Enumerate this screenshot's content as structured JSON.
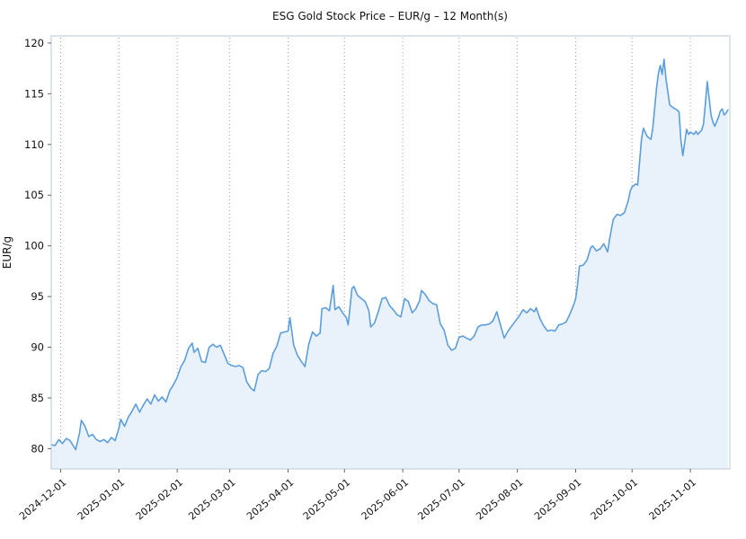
{
  "chart_data": {
    "type": "area",
    "title": "ESG Gold Stock Price – EUR/g – 12 Month(s)",
    "ylabel": "EUR/g",
    "xlabel": "",
    "series_name": "ESG Gold Stock Price (EUR/g)",
    "legend": "none",
    "grid": "vertical-dotted",
    "ylim": [
      78.0,
      120.7
    ],
    "xlim": [
      "2024-11-26",
      "2025-11-22"
    ],
    "y_ticks": [
      80,
      85,
      90,
      95,
      100,
      105,
      110,
      115,
      120
    ],
    "x_ticks": [
      "2024-12-01",
      "2025-01-01",
      "2025-02-01",
      "2025-03-01",
      "2025-04-01",
      "2025-05-01",
      "2025-06-01",
      "2025-07-01",
      "2025-08-01",
      "2025-09-01",
      "2025-10-01",
      "2025-11-01"
    ],
    "line_color": "#5b9edb",
    "fill_color": "#e9f2fb",
    "grid_color": "#9e9e9e",
    "frame_color": "#c5d3de",
    "points": [
      [
        "2024-11-26",
        80.4
      ],
      [
        "2024-11-28",
        80.3
      ],
      [
        "2024-11-30",
        80.9
      ],
      [
        "2024-12-02",
        80.5
      ],
      [
        "2024-12-04",
        81.0
      ],
      [
        "2024-12-06",
        80.8
      ],
      [
        "2024-12-08",
        80.2
      ],
      [
        "2024-12-09",
        79.9
      ],
      [
        "2024-12-11",
        81.5
      ],
      [
        "2024-12-12",
        82.8
      ],
      [
        "2024-12-14",
        82.2
      ],
      [
        "2024-12-16",
        81.2
      ],
      [
        "2024-12-18",
        81.4
      ],
      [
        "2024-12-20",
        80.9
      ],
      [
        "2024-12-22",
        80.7
      ],
      [
        "2024-12-24",
        80.9
      ],
      [
        "2024-12-26",
        80.6
      ],
      [
        "2024-12-28",
        81.1
      ],
      [
        "2024-12-30",
        80.8
      ],
      [
        "2025-01-01",
        82.0
      ],
      [
        "2025-01-02",
        82.9
      ],
      [
        "2025-01-04",
        82.2
      ],
      [
        "2025-01-06",
        83.1
      ],
      [
        "2025-01-08",
        83.7
      ],
      [
        "2025-01-10",
        84.4
      ],
      [
        "2025-01-12",
        83.6
      ],
      [
        "2025-01-14",
        84.3
      ],
      [
        "2025-01-16",
        84.9
      ],
      [
        "2025-01-18",
        84.4
      ],
      [
        "2025-01-20",
        85.3
      ],
      [
        "2025-01-22",
        84.7
      ],
      [
        "2025-01-24",
        85.1
      ],
      [
        "2025-01-26",
        84.6
      ],
      [
        "2025-01-28",
        85.7
      ],
      [
        "2025-01-30",
        86.3
      ],
      [
        "2025-02-01",
        87.0
      ],
      [
        "2025-02-03",
        88.1
      ],
      [
        "2025-02-05",
        88.7
      ],
      [
        "2025-02-07",
        89.9
      ],
      [
        "2025-02-09",
        90.4
      ],
      [
        "2025-02-10",
        89.5
      ],
      [
        "2025-02-12",
        89.9
      ],
      [
        "2025-02-14",
        88.6
      ],
      [
        "2025-02-16",
        88.5
      ],
      [
        "2025-02-18",
        90.0
      ],
      [
        "2025-02-20",
        90.3
      ],
      [
        "2025-02-22",
        90.0
      ],
      [
        "2025-02-24",
        90.2
      ],
      [
        "2025-02-26",
        89.3
      ],
      [
        "2025-02-28",
        88.4
      ],
      [
        "2025-03-02",
        88.2
      ],
      [
        "2025-03-04",
        88.1
      ],
      [
        "2025-03-06",
        88.2
      ],
      [
        "2025-03-08",
        88.0
      ],
      [
        "2025-03-10",
        86.6
      ],
      [
        "2025-03-12",
        86.0
      ],
      [
        "2025-03-14",
        85.7
      ],
      [
        "2025-03-16",
        87.3
      ],
      [
        "2025-03-18",
        87.7
      ],
      [
        "2025-03-20",
        87.6
      ],
      [
        "2025-03-22",
        87.9
      ],
      [
        "2025-03-24",
        89.4
      ],
      [
        "2025-03-26",
        90.1
      ],
      [
        "2025-03-28",
        91.4
      ],
      [
        "2025-03-30",
        91.5
      ],
      [
        "2025-04-01",
        91.6
      ],
      [
        "2025-04-02",
        92.9
      ],
      [
        "2025-04-04",
        90.2
      ],
      [
        "2025-04-06",
        89.2
      ],
      [
        "2025-04-08",
        88.6
      ],
      [
        "2025-04-10",
        88.1
      ],
      [
        "2025-04-12",
        90.3
      ],
      [
        "2025-04-14",
        91.5
      ],
      [
        "2025-04-16",
        91.1
      ],
      [
        "2025-04-18",
        91.4
      ],
      [
        "2025-04-19",
        93.8
      ],
      [
        "2025-04-21",
        93.9
      ],
      [
        "2025-04-23",
        93.6
      ],
      [
        "2025-04-25",
        96.1
      ],
      [
        "2025-04-26",
        93.7
      ],
      [
        "2025-04-28",
        94.0
      ],
      [
        "2025-04-30",
        93.4
      ],
      [
        "2025-05-02",
        92.9
      ],
      [
        "2025-05-03",
        92.2
      ],
      [
        "2025-05-05",
        95.8
      ],
      [
        "2025-05-06",
        96.0
      ],
      [
        "2025-05-08",
        95.1
      ],
      [
        "2025-05-10",
        94.8
      ],
      [
        "2025-05-12",
        94.5
      ],
      [
        "2025-05-14",
        93.6
      ],
      [
        "2025-05-15",
        92.0
      ],
      [
        "2025-05-17",
        92.4
      ],
      [
        "2025-05-19",
        93.5
      ],
      [
        "2025-05-21",
        94.8
      ],
      [
        "2025-05-23",
        94.9
      ],
      [
        "2025-05-25",
        94.1
      ],
      [
        "2025-05-27",
        93.7
      ],
      [
        "2025-05-29",
        93.2
      ],
      [
        "2025-05-31",
        93.0
      ],
      [
        "2025-06-02",
        94.8
      ],
      [
        "2025-06-04",
        94.5
      ],
      [
        "2025-06-06",
        93.4
      ],
      [
        "2025-06-08",
        93.8
      ],
      [
        "2025-06-10",
        94.6
      ],
      [
        "2025-06-11",
        95.6
      ],
      [
        "2025-06-13",
        95.2
      ],
      [
        "2025-06-15",
        94.6
      ],
      [
        "2025-06-17",
        94.3
      ],
      [
        "2025-06-19",
        94.2
      ],
      [
        "2025-06-21",
        92.3
      ],
      [
        "2025-06-23",
        91.7
      ],
      [
        "2025-06-25",
        90.2
      ],
      [
        "2025-06-27",
        89.7
      ],
      [
        "2025-06-29",
        89.9
      ],
      [
        "2025-07-01",
        91.0
      ],
      [
        "2025-07-03",
        91.1
      ],
      [
        "2025-07-05",
        90.9
      ],
      [
        "2025-07-07",
        90.7
      ],
      [
        "2025-07-09",
        91.1
      ],
      [
        "2025-07-11",
        92.0
      ],
      [
        "2025-07-13",
        92.2
      ],
      [
        "2025-07-15",
        92.2
      ],
      [
        "2025-07-17",
        92.3
      ],
      [
        "2025-07-19",
        92.6
      ],
      [
        "2025-07-21",
        93.5
      ],
      [
        "2025-07-23",
        92.2
      ],
      [
        "2025-07-25",
        90.9
      ],
      [
        "2025-07-27",
        91.6
      ],
      [
        "2025-07-29",
        92.1
      ],
      [
        "2025-07-31",
        92.6
      ],
      [
        "2025-08-02",
        93.1
      ],
      [
        "2025-08-04",
        93.7
      ],
      [
        "2025-08-06",
        93.4
      ],
      [
        "2025-08-08",
        93.8
      ],
      [
        "2025-08-10",
        93.5
      ],
      [
        "2025-08-11",
        93.9
      ],
      [
        "2025-08-13",
        92.8
      ],
      [
        "2025-08-15",
        92.1
      ],
      [
        "2025-08-17",
        91.6
      ],
      [
        "2025-08-19",
        91.7
      ],
      [
        "2025-08-21",
        91.6
      ],
      [
        "2025-08-23",
        92.2
      ],
      [
        "2025-08-25",
        92.3
      ],
      [
        "2025-08-27",
        92.5
      ],
      [
        "2025-08-29",
        93.3
      ],
      [
        "2025-08-31",
        94.2
      ],
      [
        "2025-09-01",
        94.8
      ],
      [
        "2025-09-02",
        96.2
      ],
      [
        "2025-09-03",
        98.0
      ],
      [
        "2025-09-05",
        98.1
      ],
      [
        "2025-09-07",
        98.6
      ],
      [
        "2025-09-09",
        99.8
      ],
      [
        "2025-09-10",
        100.0
      ],
      [
        "2025-09-12",
        99.5
      ],
      [
        "2025-09-14",
        99.7
      ],
      [
        "2025-09-16",
        100.2
      ],
      [
        "2025-09-18",
        99.4
      ],
      [
        "2025-09-19",
        100.6
      ],
      [
        "2025-09-21",
        102.6
      ],
      [
        "2025-09-23",
        103.1
      ],
      [
        "2025-09-25",
        103.0
      ],
      [
        "2025-09-27",
        103.3
      ],
      [
        "2025-09-29",
        104.5
      ],
      [
        "2025-09-30",
        105.4
      ],
      [
        "2025-10-01",
        105.8
      ],
      [
        "2025-10-03",
        106.1
      ],
      [
        "2025-10-04",
        106.0
      ],
      [
        "2025-10-05",
        108.3
      ],
      [
        "2025-10-06",
        110.5
      ],
      [
        "2025-10-07",
        111.6
      ],
      [
        "2025-10-09",
        110.8
      ],
      [
        "2025-10-11",
        110.5
      ],
      [
        "2025-10-12",
        111.6
      ],
      [
        "2025-10-13",
        113.5
      ],
      [
        "2025-10-14",
        115.5
      ],
      [
        "2025-10-15",
        117.0
      ],
      [
        "2025-10-16",
        117.8
      ],
      [
        "2025-10-17",
        116.9
      ],
      [
        "2025-10-18",
        118.4
      ],
      [
        "2025-10-19",
        116.5
      ],
      [
        "2025-10-21",
        113.9
      ],
      [
        "2025-10-23",
        113.6
      ],
      [
        "2025-10-25",
        113.4
      ],
      [
        "2025-10-26",
        113.2
      ],
      [
        "2025-10-27",
        110.4
      ],
      [
        "2025-10-28",
        108.9
      ],
      [
        "2025-10-30",
        111.5
      ],
      [
        "2025-10-31",
        111.0
      ],
      [
        "2025-11-01",
        111.2
      ],
      [
        "2025-11-03",
        111.0
      ],
      [
        "2025-11-04",
        111.3
      ],
      [
        "2025-11-05",
        111.0
      ],
      [
        "2025-11-07",
        111.4
      ],
      [
        "2025-11-08",
        112.0
      ],
      [
        "2025-11-09",
        114.0
      ],
      [
        "2025-11-10",
        116.2
      ],
      [
        "2025-11-12",
        112.9
      ],
      [
        "2025-11-13",
        112.2
      ],
      [
        "2025-11-14",
        111.8
      ],
      [
        "2025-11-16",
        112.7
      ],
      [
        "2025-11-17",
        113.3
      ],
      [
        "2025-11-18",
        113.5
      ],
      [
        "2025-11-19",
        112.9
      ],
      [
        "2025-11-20",
        113.1
      ],
      [
        "2025-11-21",
        113.4
      ]
    ]
  }
}
